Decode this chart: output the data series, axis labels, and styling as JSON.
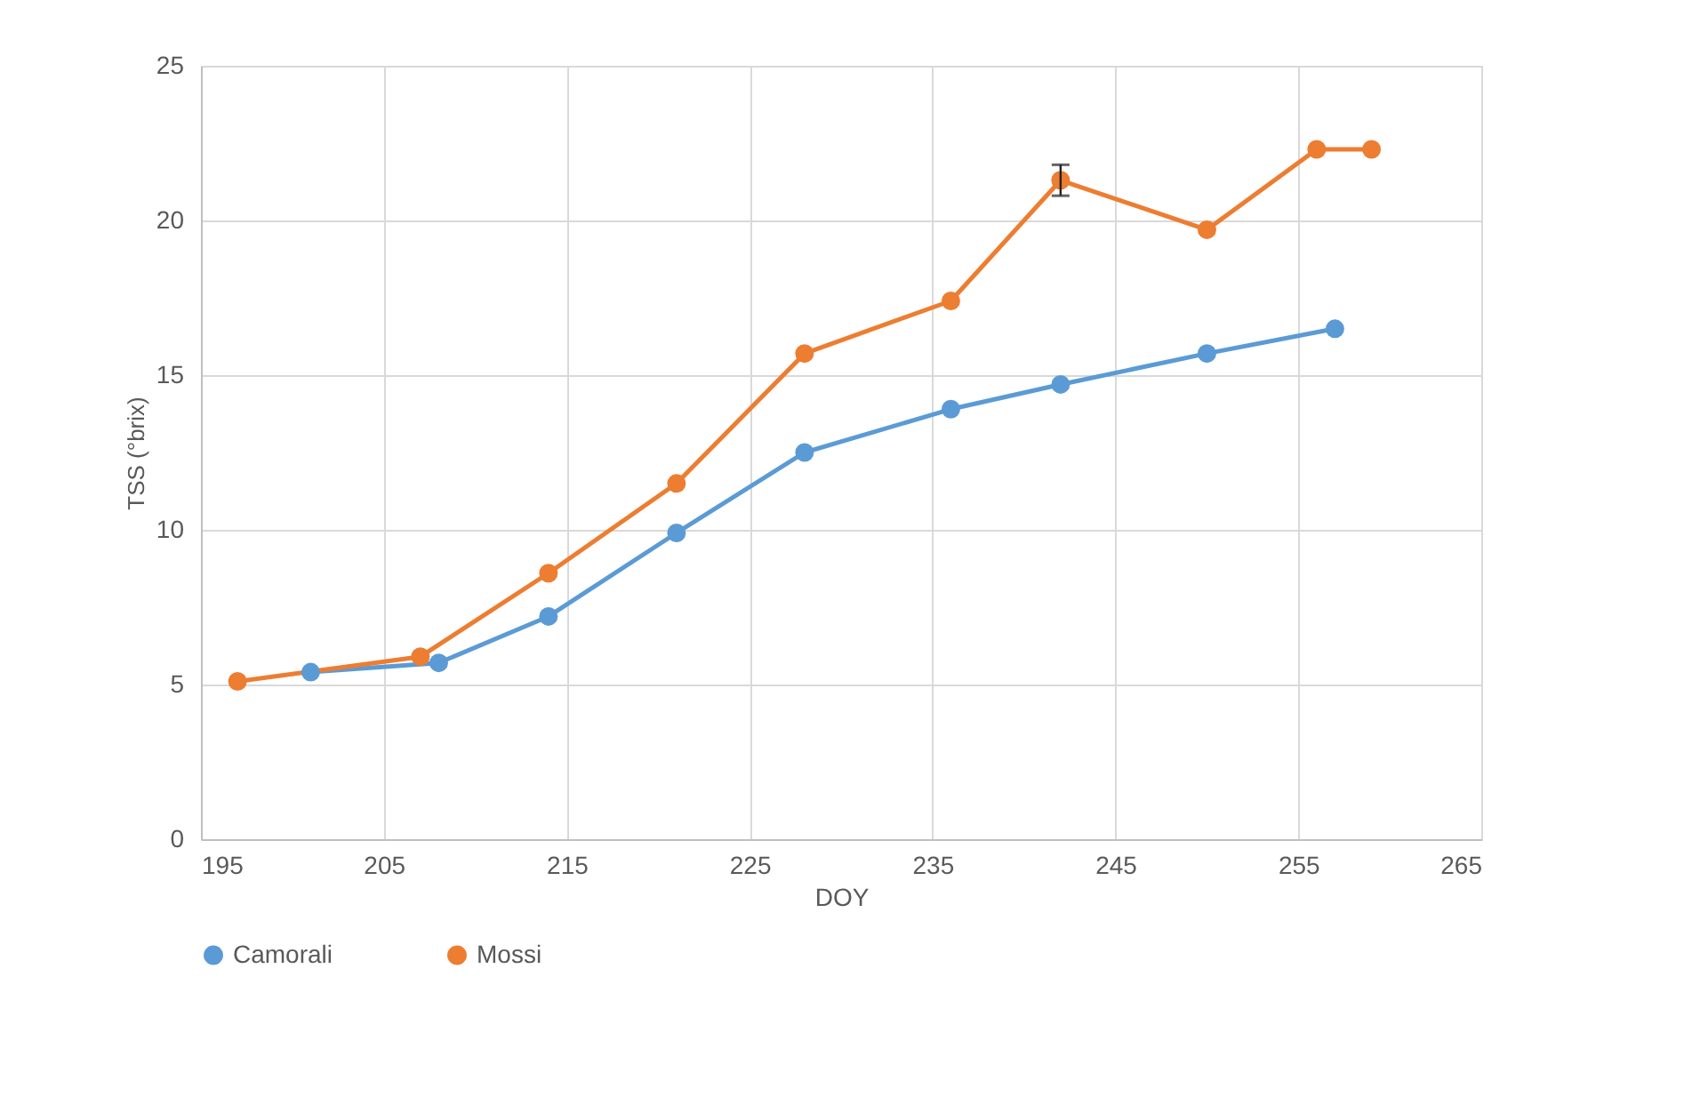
{
  "chart_data": {
    "type": "line",
    "xlabel": "DOY",
    "ylabel": "TSS (°brix)",
    "xlim": [
      195,
      265
    ],
    "xticks": [
      195,
      205,
      215,
      225,
      235,
      245,
      255,
      265
    ],
    "ylim": [
      0,
      25
    ],
    "yticks": [
      0,
      5,
      10,
      15,
      20,
      25
    ],
    "grid": true,
    "legend": "bottom",
    "marker": "circle",
    "line_style": "solid",
    "series": [
      {
        "name": "Camorali",
        "color": "#5b9bd5",
        "x": [
          201,
          208,
          214,
          221,
          228,
          236,
          242,
          250,
          257
        ],
        "values": [
          5.4,
          5.7,
          7.2,
          9.9,
          12.5,
          13.9,
          14.7,
          15.7,
          16.5
        ]
      },
      {
        "name": "Mossi",
        "color": "#ed7d31",
        "x": [
          197,
          207,
          214,
          221,
          228,
          236,
          242,
          250,
          256,
          259
        ],
        "values": [
          5.1,
          5.9,
          8.6,
          11.5,
          15.7,
          17.4,
          21.3,
          19.7,
          22.3,
          22.3
        ],
        "errors": [
          null,
          null,
          null,
          null,
          null,
          null,
          0.5,
          null,
          null,
          null
        ]
      }
    ]
  }
}
